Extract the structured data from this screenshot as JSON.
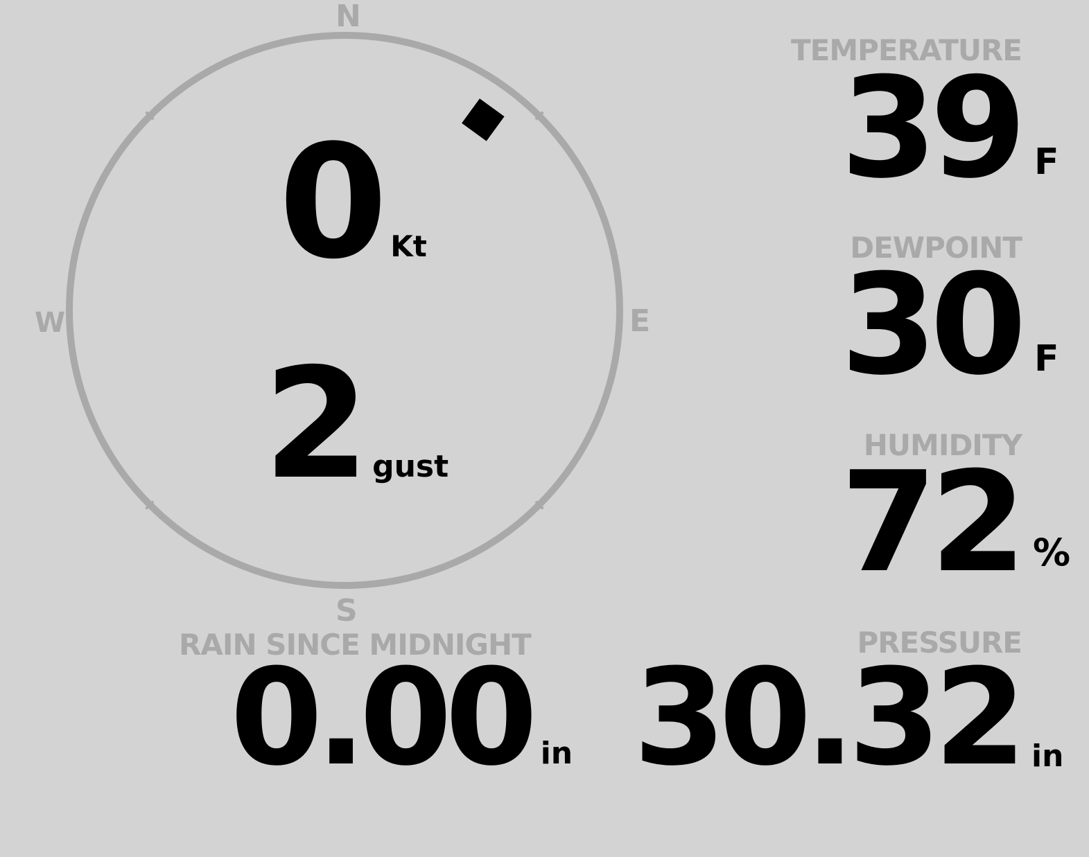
{
  "wind": {
    "speed": "0",
    "speed_unit": "Kt",
    "gust": "2",
    "gust_unit": "gust",
    "direction_deg": 36,
    "compass": {
      "n": "N",
      "e": "E",
      "s": "S",
      "w": "W"
    }
  },
  "temperature": {
    "label": "TEMPERATURE",
    "value": "39",
    "unit": "F"
  },
  "dewpoint": {
    "label": "DEWPOINT",
    "value": "30",
    "unit": "F"
  },
  "humidity": {
    "label": "HUMIDITY",
    "value": "72",
    "unit": "%"
  },
  "rain": {
    "label": "RAIN SINCE MIDNIGHT",
    "value": "0.00",
    "unit": "in"
  },
  "pressure": {
    "label": "PRESSURE",
    "value": "30.32",
    "unit": "in"
  },
  "colors": {
    "background": "#d3d3d3",
    "label": "#a9a9a9",
    "value": "#000000",
    "ring": "#a9a9a9"
  }
}
